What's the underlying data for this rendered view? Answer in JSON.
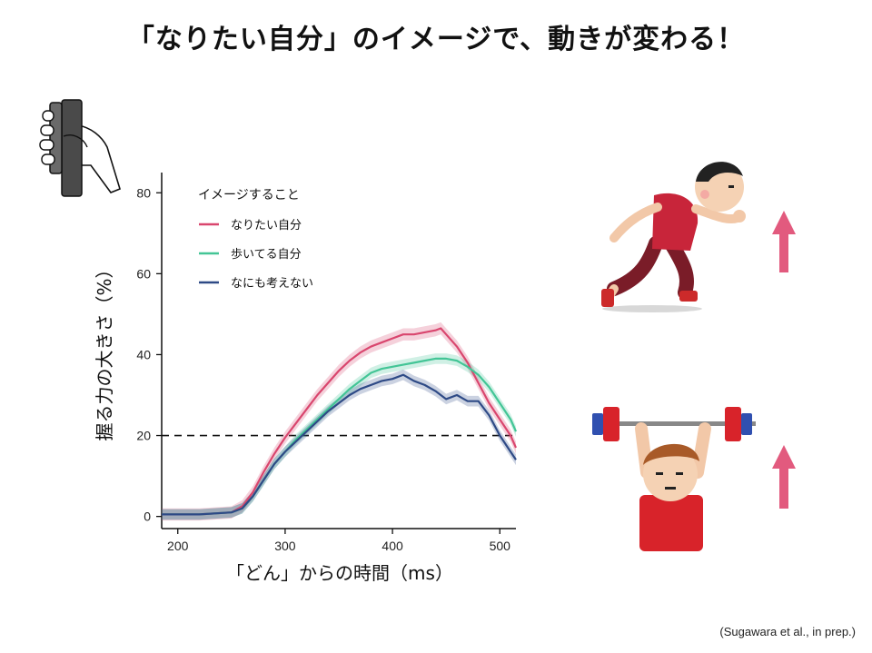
{
  "slide": {
    "title": "「なりたい自分」のイメージで、動きが変わる！",
    "citation": "(Sugawara et al., in prep.)"
  },
  "colors": {
    "ideal": "#d9466e",
    "walking": "#43c596",
    "nothing": "#2e4a86",
    "arrow": "#e25a7e"
  },
  "icons": [
    "hand-grip-dynamometer-icon",
    "running-athlete-icon",
    "weightlifter-icon",
    "up-arrow-icon"
  ],
  "chart_data": {
    "type": "line",
    "xlabel": "「どん」からの時間（ms）",
    "ylabel": "握る力の大きさ（%）",
    "xlim": [
      185,
      515
    ],
    "ylim": [
      -3,
      85
    ],
    "xticks": [
      200,
      300,
      400,
      500
    ],
    "yticks": [
      0,
      20,
      40,
      60,
      80
    ],
    "reference_line": {
      "y": 20,
      "style": "dashed"
    },
    "legend": {
      "title": "イメージすること",
      "placement": "top-left"
    },
    "series": [
      {
        "name": "なりたい自分",
        "color": "#d9466e",
        "x": [
          185,
          220,
          250,
          260,
          270,
          280,
          290,
          300,
          310,
          320,
          330,
          340,
          350,
          360,
          370,
          380,
          390,
          400,
          410,
          420,
          430,
          440,
          445,
          450,
          460,
          470,
          480,
          490,
          500,
          510,
          515
        ],
        "y": [
          0.5,
          0.5,
          1,
          2.5,
          6,
          11,
          15.5,
          19.5,
          23,
          26.5,
          30,
          33,
          36,
          38.5,
          40.5,
          42,
          43,
          44,
          45,
          45,
          45.5,
          46,
          46.5,
          45,
          42,
          38,
          33,
          28,
          24,
          20,
          17
        ],
        "band": 1.5
      },
      {
        "name": "歩いてる自分",
        "color": "#43c596",
        "x": [
          185,
          220,
          250,
          260,
          270,
          280,
          290,
          300,
          310,
          320,
          330,
          340,
          350,
          360,
          370,
          380,
          390,
          400,
          410,
          420,
          430,
          440,
          450,
          460,
          470,
          480,
          490,
          500,
          510,
          515
        ],
        "y": [
          0.5,
          0.5,
          1,
          2,
          5,
          9,
          13,
          16,
          19,
          21.5,
          24,
          26.5,
          29,
          31.5,
          33.5,
          35.5,
          36.5,
          37,
          37.5,
          38,
          38.5,
          39,
          39,
          38.5,
          37,
          35,
          32,
          28,
          24,
          21
        ],
        "band": 1.3
      },
      {
        "name": "なにも考えない",
        "color": "#2e4a86",
        "x": [
          185,
          220,
          250,
          260,
          270,
          280,
          290,
          300,
          310,
          320,
          330,
          340,
          350,
          360,
          370,
          380,
          390,
          400,
          410,
          420,
          430,
          440,
          450,
          460,
          470,
          480,
          490,
          500,
          510,
          515
        ],
        "y": [
          0.5,
          0.5,
          1,
          2,
          5,
          9,
          13,
          16,
          18.5,
          21,
          23.5,
          26,
          28,
          30,
          31.5,
          32.5,
          33.5,
          34,
          35,
          33.5,
          32.5,
          31,
          29,
          30,
          28.5,
          28.5,
          25,
          20,
          16,
          14
        ],
        "band": 1.3
      }
    ]
  }
}
